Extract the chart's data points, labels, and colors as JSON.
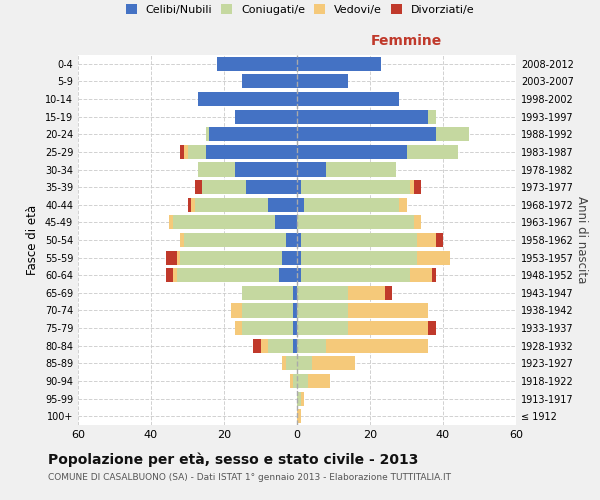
{
  "age_groups": [
    "100+",
    "95-99",
    "90-94",
    "85-89",
    "80-84",
    "75-79",
    "70-74",
    "65-69",
    "60-64",
    "55-59",
    "50-54",
    "45-49",
    "40-44",
    "35-39",
    "30-34",
    "25-29",
    "20-24",
    "15-19",
    "10-14",
    "5-9",
    "0-4"
  ],
  "birth_years": [
    "≤ 1912",
    "1913-1917",
    "1918-1922",
    "1923-1927",
    "1928-1932",
    "1933-1937",
    "1938-1942",
    "1943-1947",
    "1948-1952",
    "1953-1957",
    "1958-1962",
    "1963-1967",
    "1968-1972",
    "1973-1977",
    "1978-1982",
    "1983-1987",
    "1988-1992",
    "1993-1997",
    "1998-2002",
    "2003-2007",
    "2008-2012"
  ],
  "colors": {
    "celibe": "#4472C4",
    "coniugato": "#C5D8A0",
    "vedovo": "#F5C97A",
    "divorziato": "#C0392B"
  },
  "males": {
    "celibe": [
      0,
      0,
      0,
      0,
      1,
      1,
      1,
      1,
      5,
      4,
      3,
      6,
      8,
      14,
      17,
      25,
      24,
      17,
      27,
      15,
      22
    ],
    "coniugato": [
      0,
      0,
      1,
      3,
      7,
      14,
      14,
      14,
      28,
      28,
      28,
      28,
      20,
      12,
      10,
      5,
      1,
      0,
      0,
      0,
      0
    ],
    "vedovo": [
      0,
      0,
      1,
      1,
      2,
      2,
      3,
      0,
      1,
      1,
      1,
      1,
      1,
      0,
      0,
      1,
      0,
      0,
      0,
      0,
      0
    ],
    "divorziato": [
      0,
      0,
      0,
      0,
      2,
      0,
      0,
      0,
      2,
      3,
      0,
      0,
      1,
      2,
      0,
      1,
      0,
      0,
      0,
      0,
      0
    ]
  },
  "females": {
    "nubile": [
      0,
      0,
      0,
      0,
      0,
      0,
      0,
      0,
      1,
      1,
      1,
      0,
      2,
      1,
      8,
      30,
      38,
      36,
      28,
      14,
      23
    ],
    "coniugata": [
      0,
      1,
      3,
      4,
      8,
      14,
      14,
      14,
      30,
      32,
      32,
      32,
      26,
      30,
      19,
      14,
      9,
      2,
      0,
      0,
      0
    ],
    "vedova": [
      1,
      1,
      6,
      12,
      28,
      22,
      22,
      10,
      6,
      9,
      5,
      2,
      2,
      1,
      0,
      0,
      0,
      0,
      0,
      0,
      0
    ],
    "divorziata": [
      0,
      0,
      0,
      0,
      0,
      2,
      0,
      2,
      1,
      0,
      2,
      0,
      0,
      2,
      0,
      0,
      0,
      0,
      0,
      0,
      0
    ]
  },
  "xlim": 60,
  "title": "Popolazione per età, sesso e stato civile - 2013",
  "subtitle": "COMUNE DI CASALBUONO (SA) - Dati ISTAT 1° gennaio 2013 - Elaborazione TUTTITALIA.IT",
  "xlabel_right": "Femmine",
  "ylabel_left": "Fasce di età",
  "ylabel_right": "Anni di nascita",
  "bg_color": "#f0f0f0",
  "plot_bg_color": "#ffffff"
}
